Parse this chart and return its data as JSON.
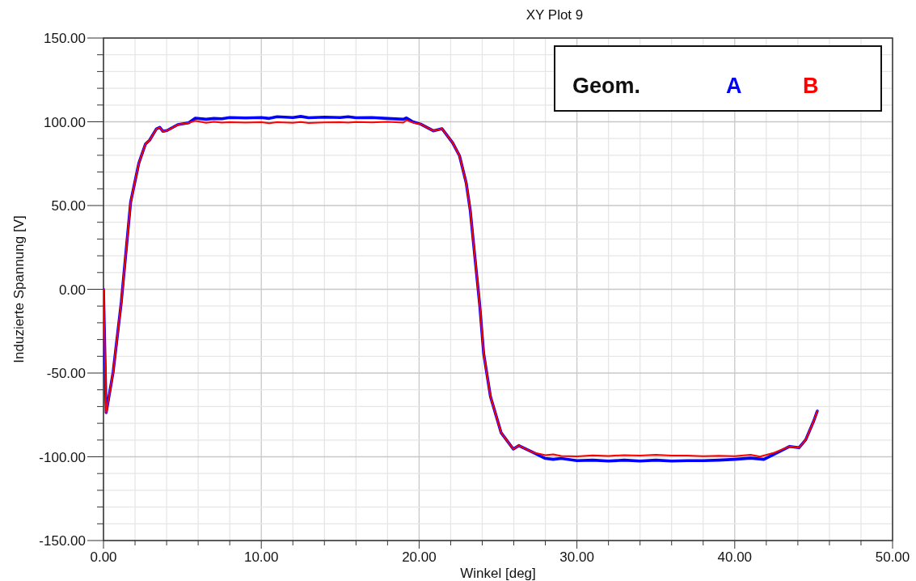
{
  "chart_data": {
    "type": "line",
    "title": "XY Plot 9",
    "xlabel": "Winkel [deg]",
    "ylabel": "Induzierte Spannung [V]",
    "legend_title": "Geom.",
    "legend": "top right",
    "grid": true,
    "marker": "none",
    "line_style": "solid",
    "xlim": [
      0,
      50
    ],
    "ylim": [
      -150,
      150
    ],
    "xticks": [
      {
        "value": 0,
        "label": "0.00"
      },
      {
        "value": 2,
        "label": null
      },
      {
        "value": 4,
        "label": null
      },
      {
        "value": 6,
        "label": null
      },
      {
        "value": 8,
        "label": null
      },
      {
        "value": 10,
        "label": "10.00"
      },
      {
        "value": 12,
        "label": null
      },
      {
        "value": 14,
        "label": null
      },
      {
        "value": 16,
        "label": null
      },
      {
        "value": 18,
        "label": null
      },
      {
        "value": 20,
        "label": "20.00"
      },
      {
        "value": 22,
        "label": null
      },
      {
        "value": 24,
        "label": null
      },
      {
        "value": 26,
        "label": null
      },
      {
        "value": 28,
        "label": null
      },
      {
        "value": 30,
        "label": "30.00"
      },
      {
        "value": 32,
        "label": null
      },
      {
        "value": 34,
        "label": null
      },
      {
        "value": 36,
        "label": null
      },
      {
        "value": 38,
        "label": null
      },
      {
        "value": 40,
        "label": "40.00"
      },
      {
        "value": 42,
        "label": null
      },
      {
        "value": 44,
        "label": null
      },
      {
        "value": 46,
        "label": null
      },
      {
        "value": 48,
        "label": null
      },
      {
        "value": 50,
        "label": "50.00"
      }
    ],
    "yticks": [
      {
        "value": -150,
        "label": "-150.00"
      },
      {
        "value": -140,
        "label": null
      },
      {
        "value": -130,
        "label": null
      },
      {
        "value": -120,
        "label": null
      },
      {
        "value": -110,
        "label": null
      },
      {
        "value": -100,
        "label": "-100.00"
      },
      {
        "value": -90,
        "label": null
      },
      {
        "value": -80,
        "label": null
      },
      {
        "value": -70,
        "label": null
      },
      {
        "value": -60,
        "label": null
      },
      {
        "value": -50,
        "label": "-50.00"
      },
      {
        "value": -40,
        "label": null
      },
      {
        "value": -30,
        "label": null
      },
      {
        "value": -20,
        "label": null
      },
      {
        "value": -10,
        "label": null
      },
      {
        "value": 0,
        "label": "0.00"
      },
      {
        "value": 10,
        "label": null
      },
      {
        "value": 20,
        "label": null
      },
      {
        "value": 30,
        "label": null
      },
      {
        "value": 40,
        "label": null
      },
      {
        "value": 50,
        "label": "50.00"
      },
      {
        "value": 60,
        "label": null
      },
      {
        "value": 70,
        "label": null
      },
      {
        "value": 80,
        "label": null
      },
      {
        "value": 90,
        "label": null
      },
      {
        "value": 100,
        "label": "100.00"
      },
      {
        "value": 110,
        "label": null
      },
      {
        "value": 120,
        "label": null
      },
      {
        "value": 130,
        "label": null
      },
      {
        "value": 140,
        "label": null
      },
      {
        "value": 150,
        "label": "150.00"
      }
    ],
    "series": [
      {
        "name": "A",
        "color": "#0000ff",
        "x": [
          0,
          0.17,
          0.61,
          1.13,
          1.72,
          2.24,
          2.66,
          2.92,
          3.35,
          3.57,
          3.77,
          4.03,
          4.71,
          5.4,
          5.82,
          6.5,
          7,
          7.5,
          8,
          9,
          10,
          10.5,
          11,
          12,
          12.5,
          13,
          14,
          15,
          15.5,
          16,
          17,
          18,
          19,
          19.2,
          19.6,
          20.1,
          20.9,
          21.45,
          22.13,
          22.56,
          22.99,
          23.24,
          23.58,
          23.84,
          24.09,
          24.52,
          25.2,
          25.97,
          26.31,
          27.25,
          28,
          28.5,
          29,
          30,
          31,
          32,
          33,
          34,
          35,
          36,
          37,
          38,
          39,
          40,
          41,
          41.85,
          42.8,
          43.48,
          44.07,
          44.5,
          45.01,
          45.23
        ],
        "values": [
          0,
          -73.7,
          -49.5,
          -7.5,
          52,
          75.3,
          86.7,
          89,
          95.7,
          96.7,
          94.3,
          94.8,
          98.3,
          99.4,
          102.2,
          101.5,
          102,
          101.8,
          102.5,
          102.3,
          102.5,
          102,
          103,
          102.5,
          103.2,
          102.4,
          102.8,
          102.5,
          103,
          102.4,
          102.5,
          102,
          101.5,
          102.3,
          100,
          98.6,
          94.6,
          95.9,
          87.4,
          79.7,
          63.2,
          47.1,
          14.9,
          -9.3,
          -38.3,
          -64,
          -85.7,
          -95.4,
          -93.3,
          -97.5,
          -101,
          -101.5,
          -101,
          -102.3,
          -102,
          -102.5,
          -102,
          -102.5,
          -102,
          -102.5,
          -102.3,
          -102.3,
          -102,
          -101.5,
          -100.8,
          -101.5,
          -97,
          -93.8,
          -94.6,
          -89.8,
          -78.5,
          -72.7
        ]
      },
      {
        "name": "B",
        "color": "#ff0000",
        "x": [
          0,
          0.17,
          0.61,
          1.13,
          1.72,
          2.24,
          2.66,
          2.92,
          3.35,
          3.57,
          3.77,
          4.03,
          4.71,
          5.4,
          5.82,
          6.5,
          7,
          7.5,
          8,
          9,
          10,
          10.5,
          11,
          12,
          12.5,
          13,
          14,
          15,
          15.5,
          16,
          17,
          18,
          19,
          19.2,
          19.6,
          20.1,
          20.9,
          21.45,
          22.13,
          22.56,
          22.99,
          23.24,
          23.58,
          23.84,
          24.09,
          24.52,
          25.2,
          25.97,
          26.31,
          27.25,
          28,
          28.5,
          29,
          30,
          31,
          32,
          33,
          34,
          35,
          36,
          37,
          38,
          39,
          40,
          41,
          41.6,
          42.5,
          43.48,
          44.07,
          44.5,
          45.01,
          45.23
        ],
        "values": [
          0,
          -73.7,
          -49.5,
          -7.5,
          52,
          75.3,
          86.7,
          89,
          95.7,
          96.7,
          94.3,
          94.8,
          98.3,
          99.4,
          100.6,
          99.4,
          100,
          99.5,
          99.8,
          99.5,
          99.8,
          99.2,
          99.8,
          99.4,
          99.9,
          99.3,
          99.6,
          99.7,
          99.5,
          99.9,
          99.6,
          100,
          99.5,
          101,
          99.5,
          98.6,
          94.6,
          95.9,
          87.4,
          79.7,
          63.2,
          47.1,
          14.9,
          -9.3,
          -38.3,
          -64,
          -85.7,
          -95.4,
          -93.3,
          -97.5,
          -99,
          -98.6,
          -99.5,
          -99.8,
          -99.2,
          -99.5,
          -99,
          -99.3,
          -98.8,
          -99.3,
          -99.3,
          -99.6,
          -99.4,
          -99.6,
          -98.8,
          -99.9,
          -97.6,
          -93.8,
          -94.6,
          -89.8,
          -78.5,
          -72.7
        ]
      }
    ]
  }
}
